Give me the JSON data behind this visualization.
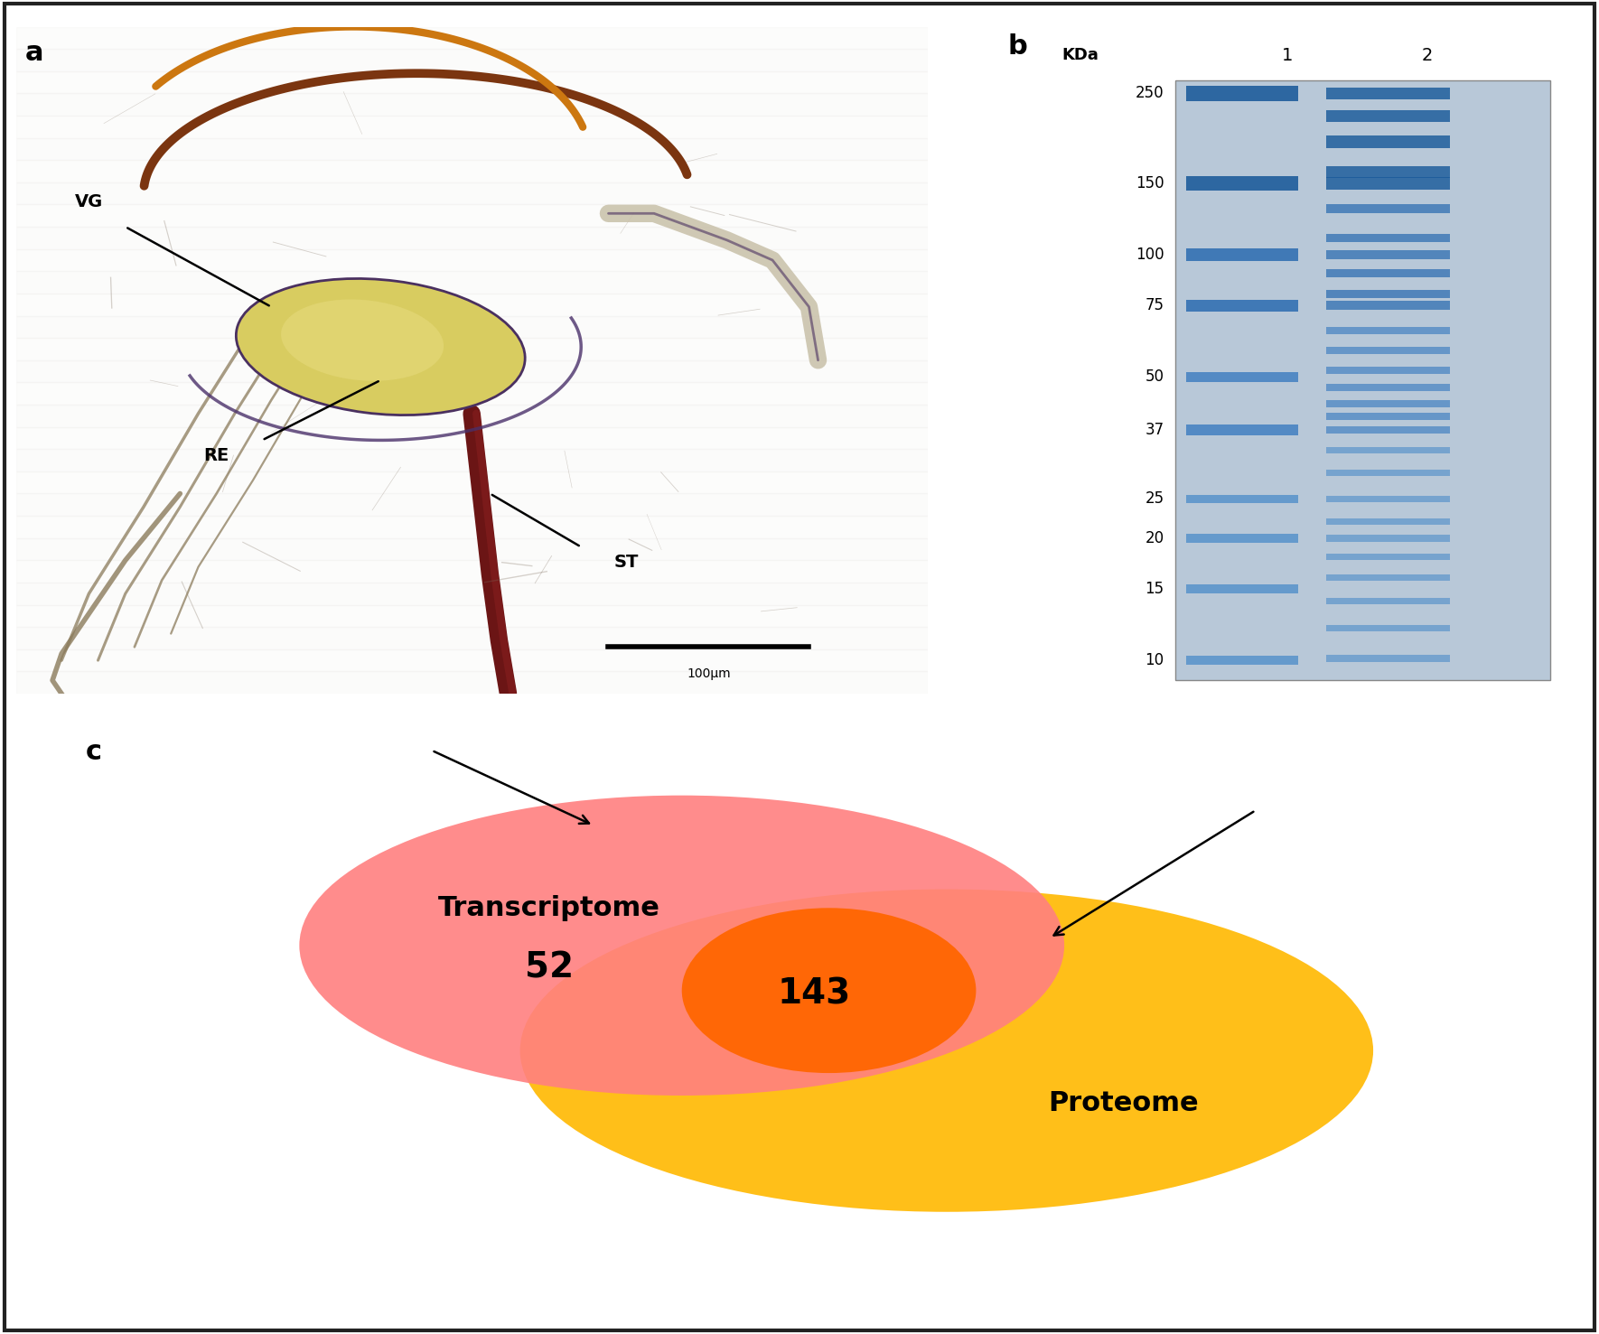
{
  "panel_a_label": "a",
  "panel_b_label": "b",
  "panel_c_label": "c",
  "venn_transcriptome_label": "Transcriptome",
  "venn_transcriptome_count": "52",
  "venn_proteome_label": "Proteome",
  "venn_intersection_count": "143",
  "venn_transcriptome_color": "#FF8080",
  "venn_proteome_color": "#FFB800",
  "venn_intersection_color": "#FF6600",
  "venn_transcriptome_alpha": 0.9,
  "venn_proteome_alpha": 0.9,
  "background_color": "#FFFFFF",
  "border_color": "#333333",
  "kda_label": "KDa",
  "kda_ticks": [
    "250",
    "150",
    "100",
    "75",
    "50",
    "37",
    "25",
    "20",
    "15",
    "10"
  ],
  "kda_values": [
    250,
    150,
    100,
    75,
    50,
    37,
    25,
    20,
    15,
    10
  ],
  "lane1_label": "1",
  "lane2_label": "2",
  "gel_bg_color": "#B8C8D8",
  "panel_label_fontsize": 22,
  "venn_label_fontsize": 22,
  "venn_count_fontsize": 28,
  "kda_fontsize": 13,
  "annotation_fontsize": 14,
  "scale_bar_text": "100μm",
  "vg_label": "VG",
  "re_label": "RE",
  "st_label": "ST"
}
